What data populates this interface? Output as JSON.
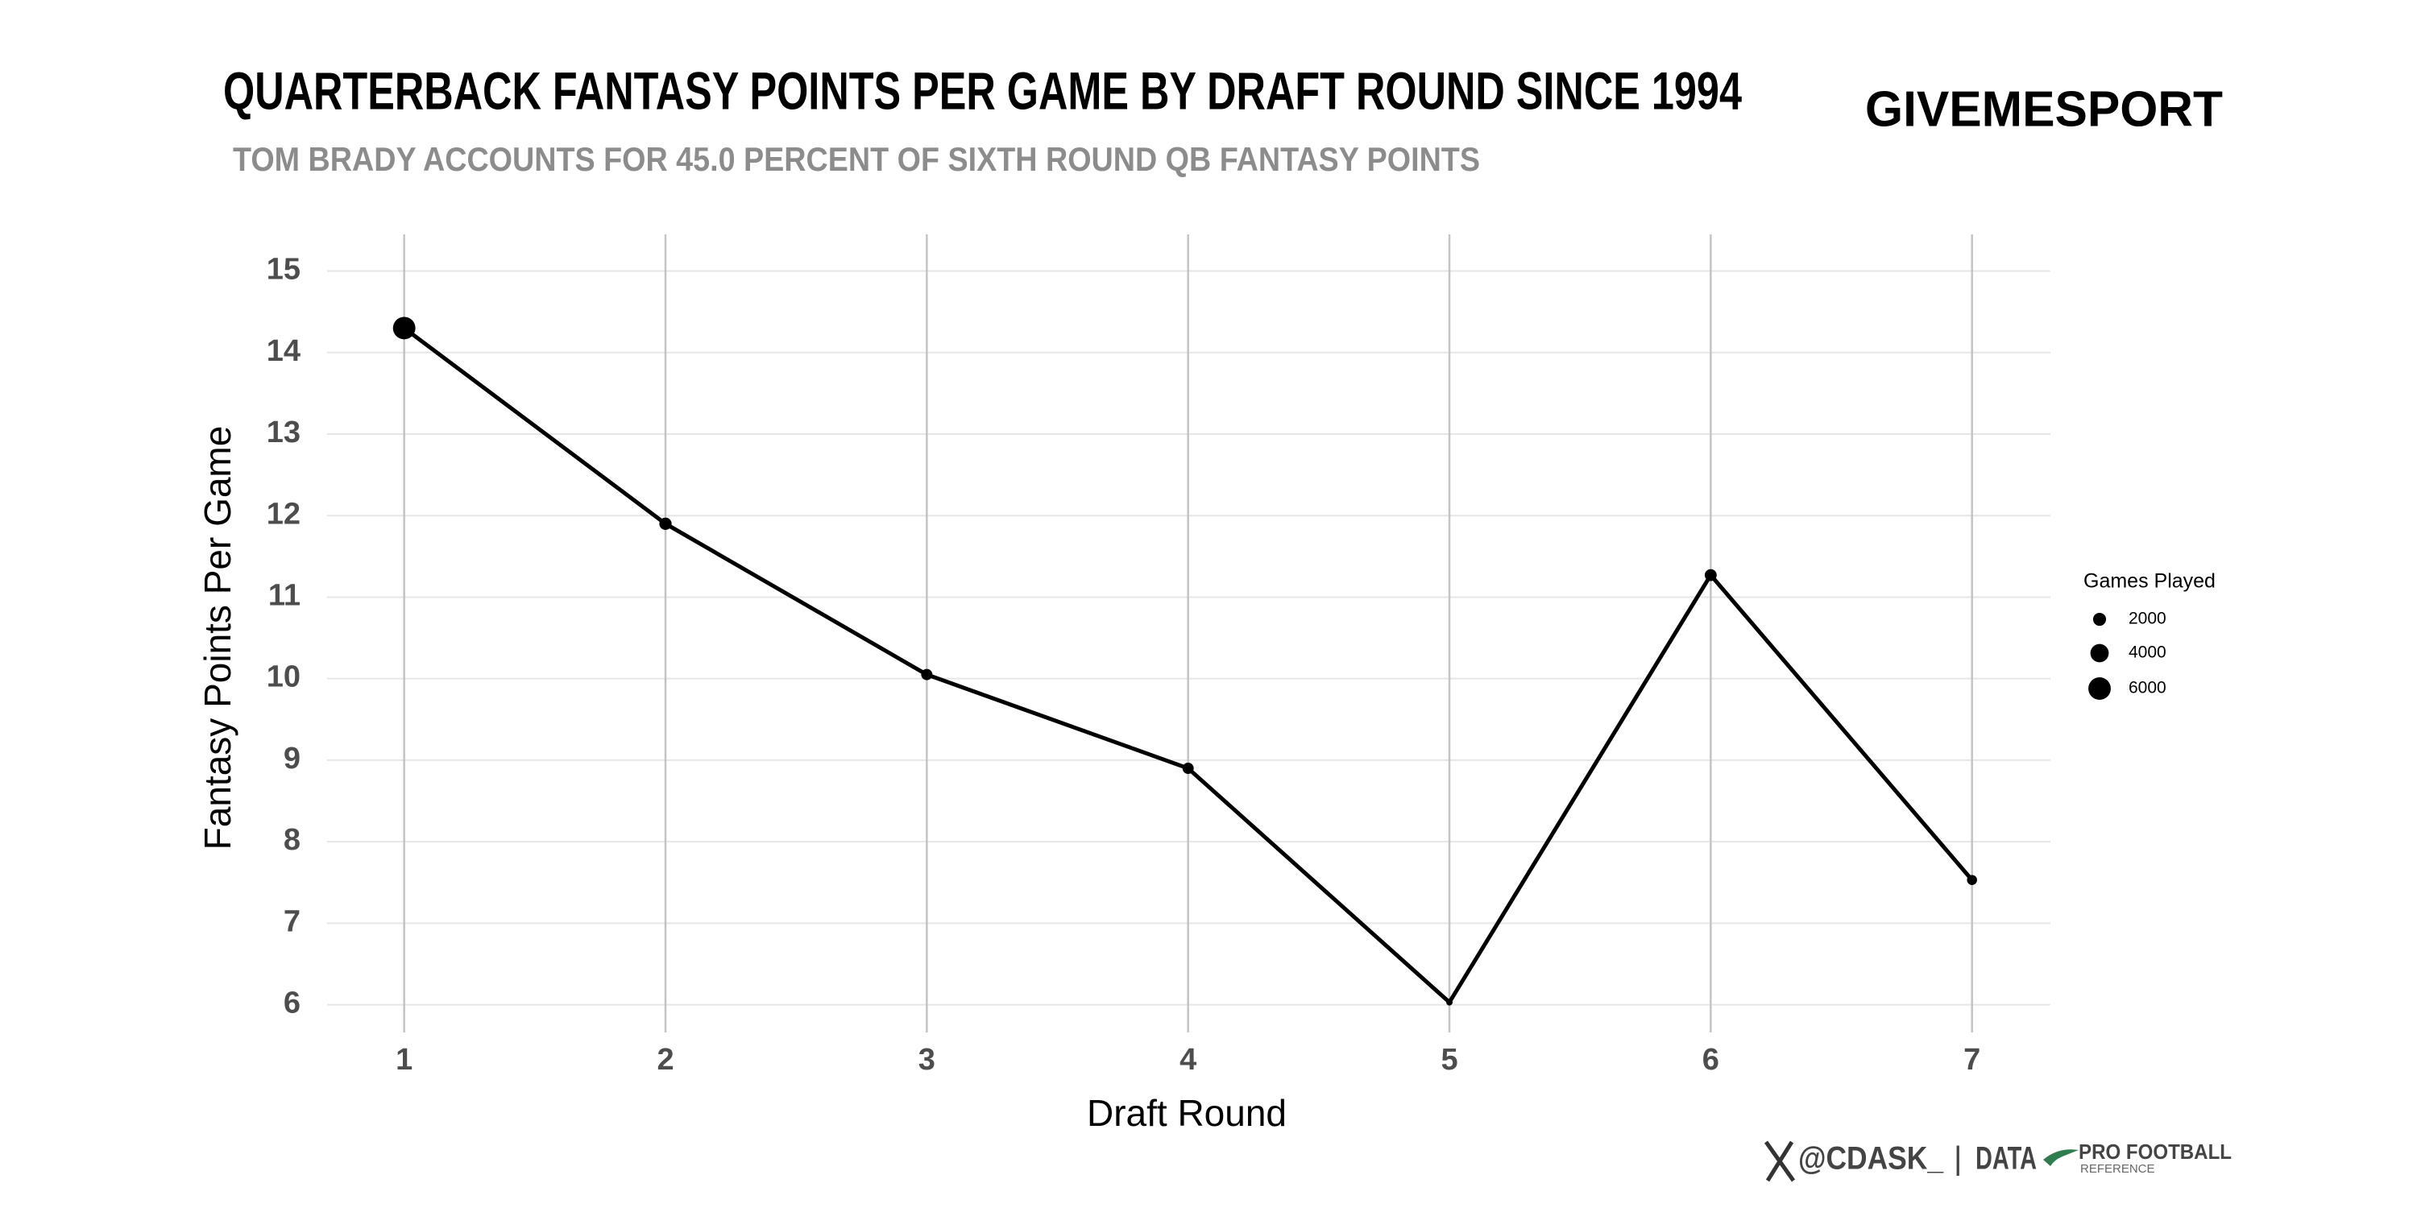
{
  "chart_data": {
    "type": "line",
    "title": "QUARTERBACK FANTASY POINTS PER GAME BY DRAFT ROUND SINCE 1994",
    "subtitle": "TOM BRADY ACCOUNTS FOR 45.0 PERCENT OF SIXTH ROUND QB FANTASY POINTS",
    "brand": "GIVEMESPORT",
    "x_label": "Draft Round",
    "y_label": "Fantasy Points Per Game",
    "x": [
      1,
      2,
      3,
      4,
      5,
      6,
      7
    ],
    "values": [
      14.3,
      11.9,
      10.05,
      8.9,
      6.03,
      11.27,
      7.53
    ],
    "sizes": [
      6000,
      1800,
      1500,
      1500,
      500,
      1700,
      1200
    ],
    "size_legend": {
      "title": "Games Played",
      "values": [
        2000,
        4000,
        6000
      ]
    },
    "color": "#000000",
    "xlim": [
      0.705,
      7.3
    ],
    "ylim": [
      5.66,
      15.45
    ],
    "xticks": [
      1,
      2,
      3,
      4,
      5,
      6,
      7
    ],
    "yticks": [
      6,
      7,
      8,
      9,
      10,
      11,
      12,
      13,
      14,
      15
    ],
    "grid": true,
    "footer": {
      "handle": "@CDASK_",
      "separator": "|",
      "data_text": "DATA",
      "source": "PRO FOOTBALL",
      "source_sub": "REFERENCE"
    }
  }
}
